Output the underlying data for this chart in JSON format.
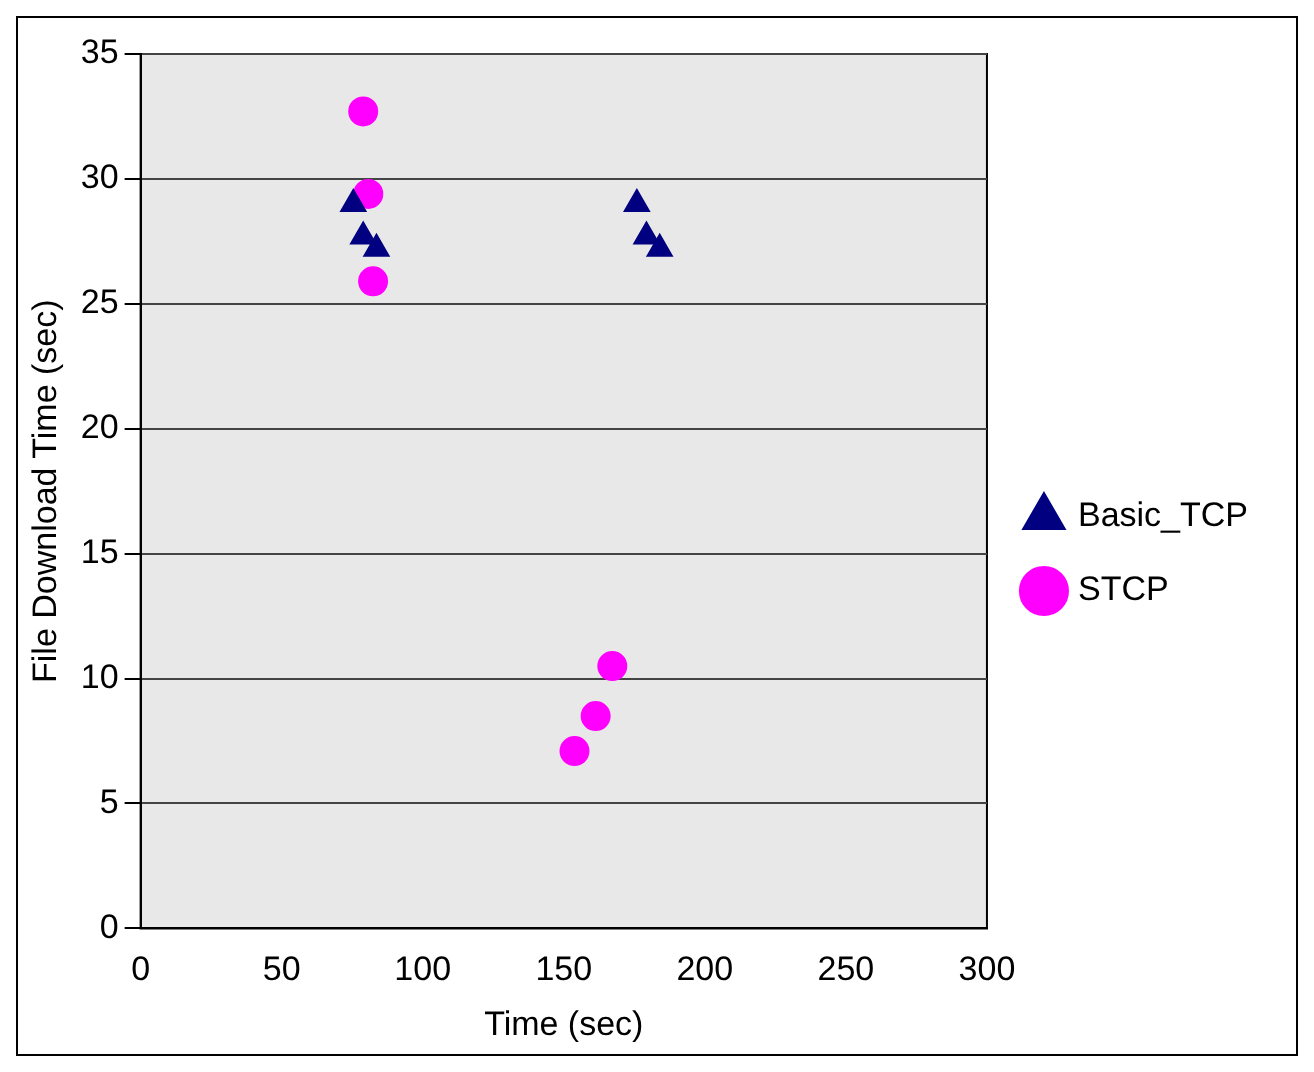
{
  "chart_data": {
    "type": "scatter",
    "xlabel": "Time (sec)",
    "ylabel": "File Download Time (sec)",
    "xlim": [
      0,
      300
    ],
    "xticks": [
      0,
      50,
      100,
      150,
      200,
      250,
      300
    ],
    "ylim": [
      0,
      35
    ],
    "yticks": [
      0,
      5,
      10,
      15,
      20,
      25,
      30,
      35
    ],
    "grid": "y",
    "legend": "right",
    "series": [
      {
        "name": "Basic_TCP",
        "color": "#000080",
        "marker": "triangle",
        "x": [
          75.4,
          78.9,
          83.6,
          175.9,
          179.3,
          184
        ],
        "values": [
          29.0,
          27.7,
          27.2,
          29.0,
          27.7,
          27.2
        ]
      },
      {
        "name": "STCP",
        "color": "#ff00ff",
        "marker": "circle",
        "x": [
          78.9,
          80.7,
          82.4,
          153.8,
          161.3,
          167.2
        ],
        "values": [
          32.7,
          29.4,
          25.9,
          7.1,
          8.5,
          10.5
        ]
      }
    ]
  }
}
